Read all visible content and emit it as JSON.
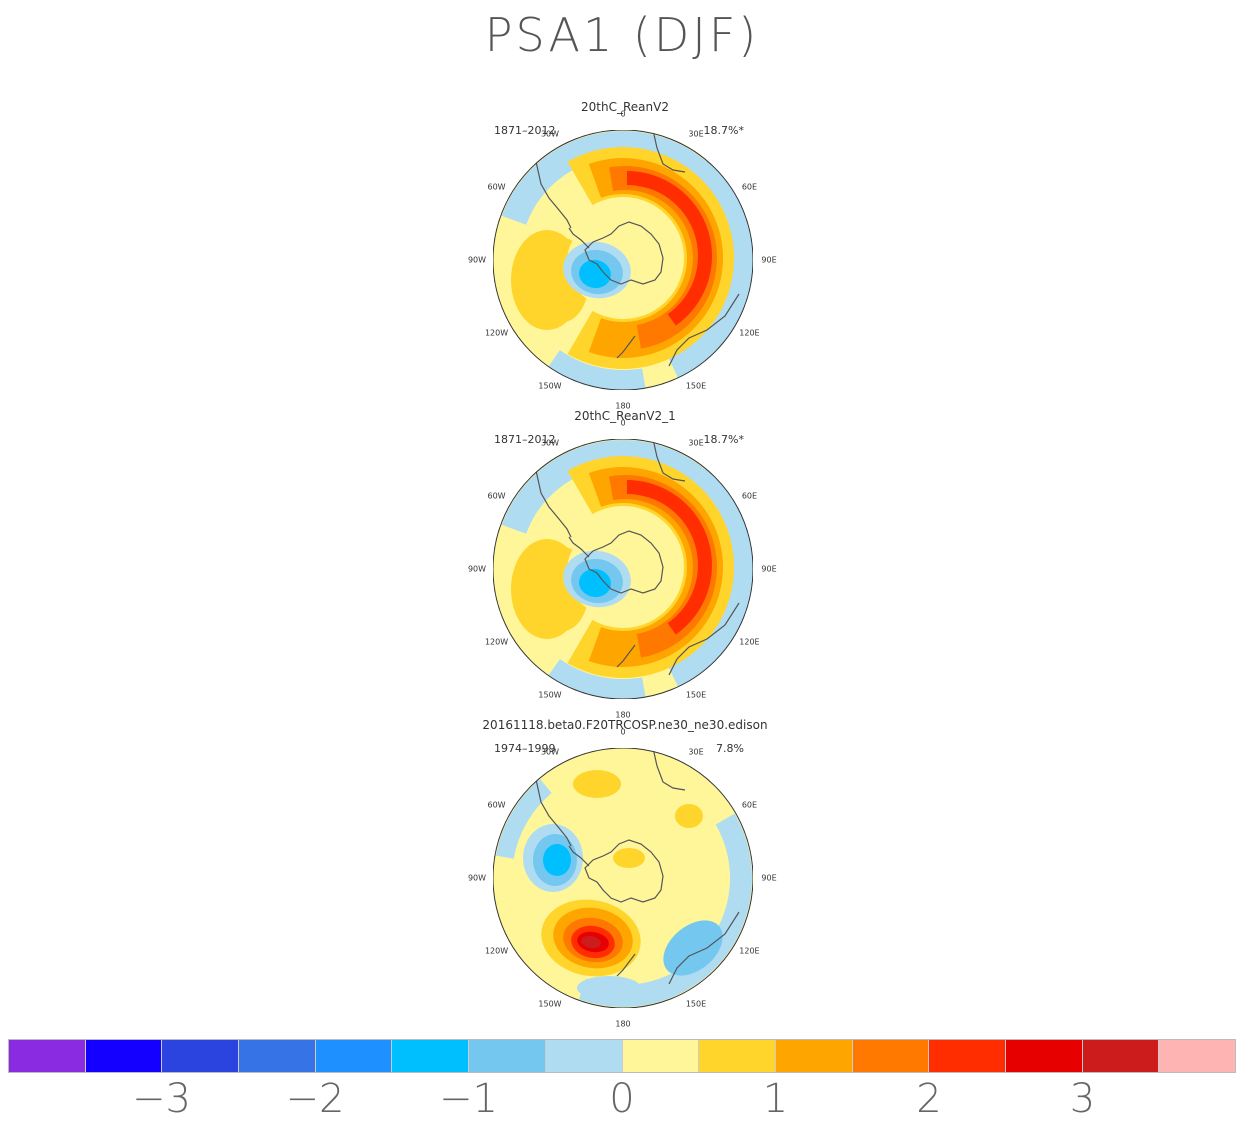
{
  "title": "PSA1 (DJF)",
  "chart_data": [
    {
      "type": "heatmap",
      "projection": "south-polar-stereographic",
      "title": "20thC_ReanV2",
      "period": "1871–2012",
      "variance_explained": "18.7%*",
      "pattern": "reanalysis",
      "longitude_labels": [
        "0",
        "30E",
        "60E",
        "90E",
        "120E",
        "150E",
        "180",
        "150W",
        "120W",
        "90W",
        "60W",
        "30W"
      ]
    },
    {
      "type": "heatmap",
      "projection": "south-polar-stereographic",
      "title": "20thC_ReanV2_1",
      "period": "1871–2012",
      "variance_explained": "18.7%*",
      "pattern": "reanalysis",
      "longitude_labels": [
        "0",
        "30E",
        "60E",
        "90E",
        "120E",
        "150E",
        "180",
        "150W",
        "120W",
        "90W",
        "60W",
        "30W"
      ]
    },
    {
      "type": "heatmap",
      "projection": "south-polar-stereographic",
      "title": "20161118.beta0.F20TRCOSP.ne30_ne30.edison",
      "period": "1974–1999",
      "variance_explained": "7.8%",
      "pattern": "model",
      "longitude_labels": [
        "0",
        "30E",
        "60E",
        "90E",
        "120E",
        "150E",
        "180",
        "150W",
        "120W",
        "90W",
        "60W",
        "30W"
      ]
    }
  ],
  "colorbar": {
    "colors": [
      "#8a2be2",
      "#1400ff",
      "#2b44e0",
      "#3673e6",
      "#1e90ff",
      "#00bfff",
      "#74c8f0",
      "#b0dcf2",
      "#fff69a",
      "#ffd52b",
      "#ffa500",
      "#ff7800",
      "#ff2d00",
      "#e60000",
      "#cc1c1c",
      "#ffb4b4"
    ],
    "tick_labels": [
      "−3",
      "−2",
      "−1",
      "0",
      "1",
      "2",
      "3"
    ]
  }
}
